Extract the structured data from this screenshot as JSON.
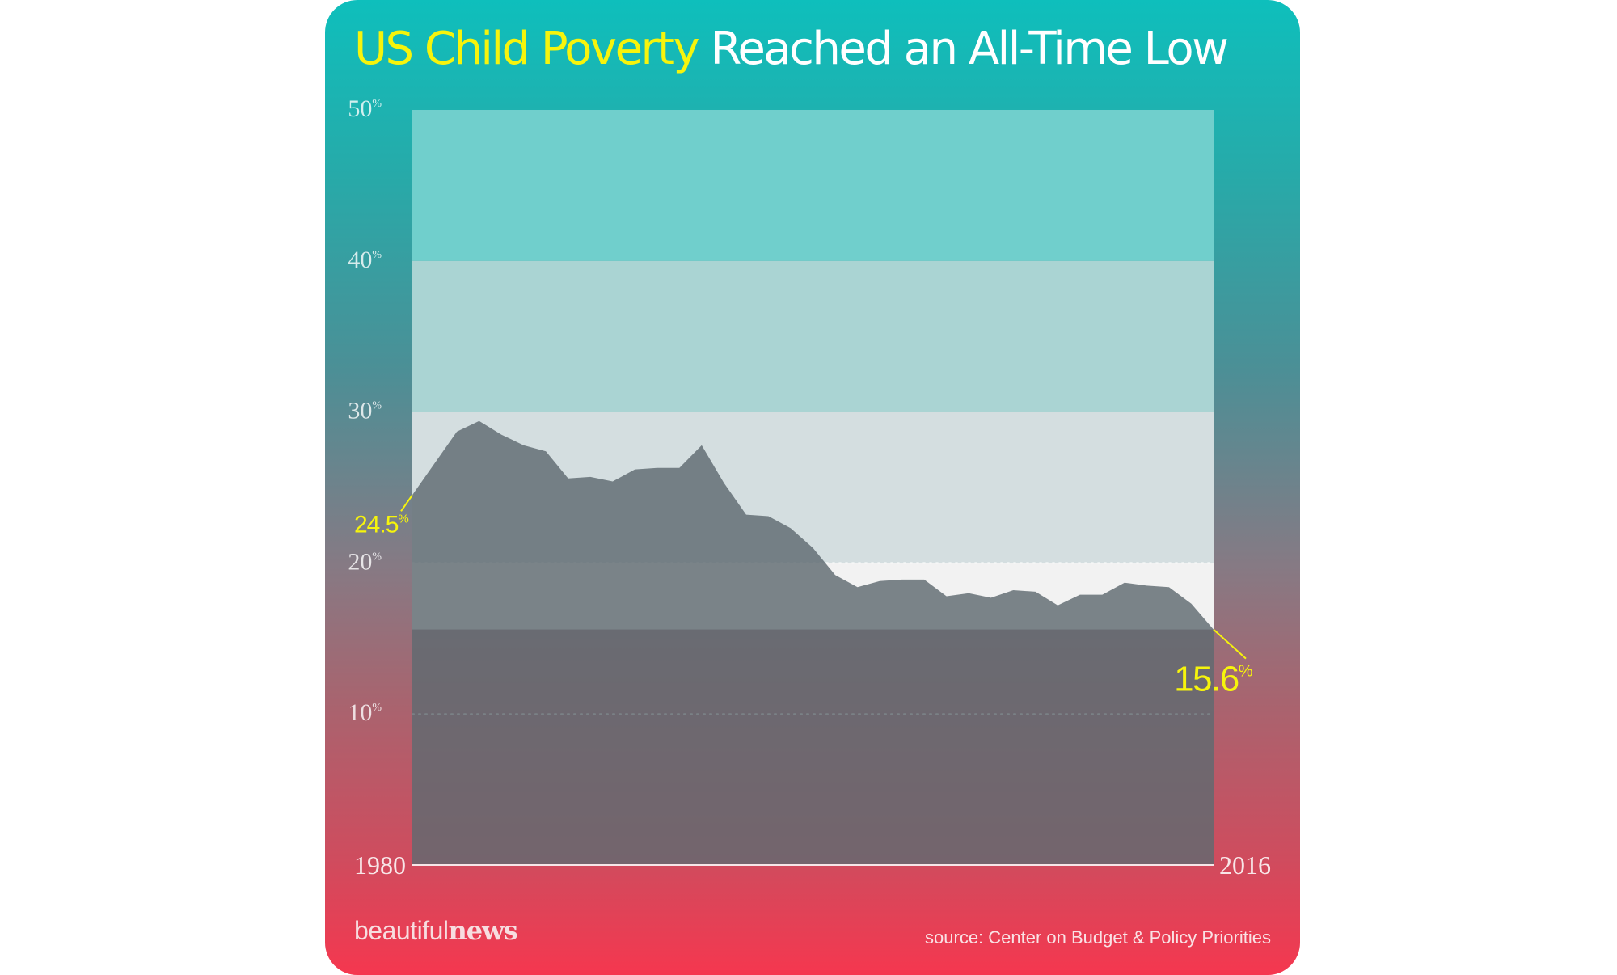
{
  "header": {
    "title_highlight": "US Child Poverty",
    "title_rest": "Reached an All-Time Low"
  },
  "footer": {
    "brand_light": "beautiful",
    "brand_bold": "news",
    "source": "source: Center on Budget & Policy Priorities"
  },
  "colors": {
    "highlight": "#f6f40c",
    "area_fill": "#5f6a70",
    "band_top": "#70cfcc",
    "band_mid": "#aad4d3",
    "band_low": "#d4dee0",
    "band_base": "#f2f2f2"
  },
  "chart_data": {
    "type": "area",
    "x_start_label": "1980",
    "x_end_label": "2016",
    "ylim": [
      0,
      50
    ],
    "y_ticks": [
      {
        "value": 50,
        "label": "50",
        "suffix": "%"
      },
      {
        "value": 40,
        "label": "40",
        "suffix": "%"
      },
      {
        "value": 30,
        "label": "30",
        "suffix": "%"
      },
      {
        "value": 20,
        "label": "20",
        "suffix": "%"
      },
      {
        "value": 10,
        "label": "10",
        "suffix": "%"
      }
    ],
    "x": [
      1980,
      1981,
      1982,
      1983,
      1984,
      1985,
      1986,
      1987,
      1988,
      1989,
      1990,
      1991,
      1992,
      1993,
      1994,
      1995,
      1996,
      1997,
      1998,
      1999,
      2000,
      2001,
      2002,
      2003,
      2004,
      2005,
      2006,
      2007,
      2008,
      2009,
      2010,
      2011,
      2012,
      2013,
      2014,
      2015,
      2016
    ],
    "values": [
      24.5,
      26.6,
      28.7,
      29.4,
      28.5,
      27.8,
      27.4,
      25.6,
      25.7,
      25.4,
      26.2,
      26.3,
      26.3,
      27.8,
      25.3,
      23.2,
      23.1,
      22.3,
      21.0,
      19.2,
      18.4,
      18.8,
      18.9,
      18.9,
      17.8,
      18.0,
      17.7,
      18.2,
      18.1,
      17.2,
      17.9,
      17.9,
      18.7,
      18.5,
      18.4,
      17.3,
      15.6
    ],
    "start_annotation": {
      "value": "24.5",
      "suffix": "%"
    },
    "end_annotation": {
      "value": "15.6",
      "suffix": "%"
    },
    "dotted_reference_lines": [
      20,
      10
    ]
  }
}
